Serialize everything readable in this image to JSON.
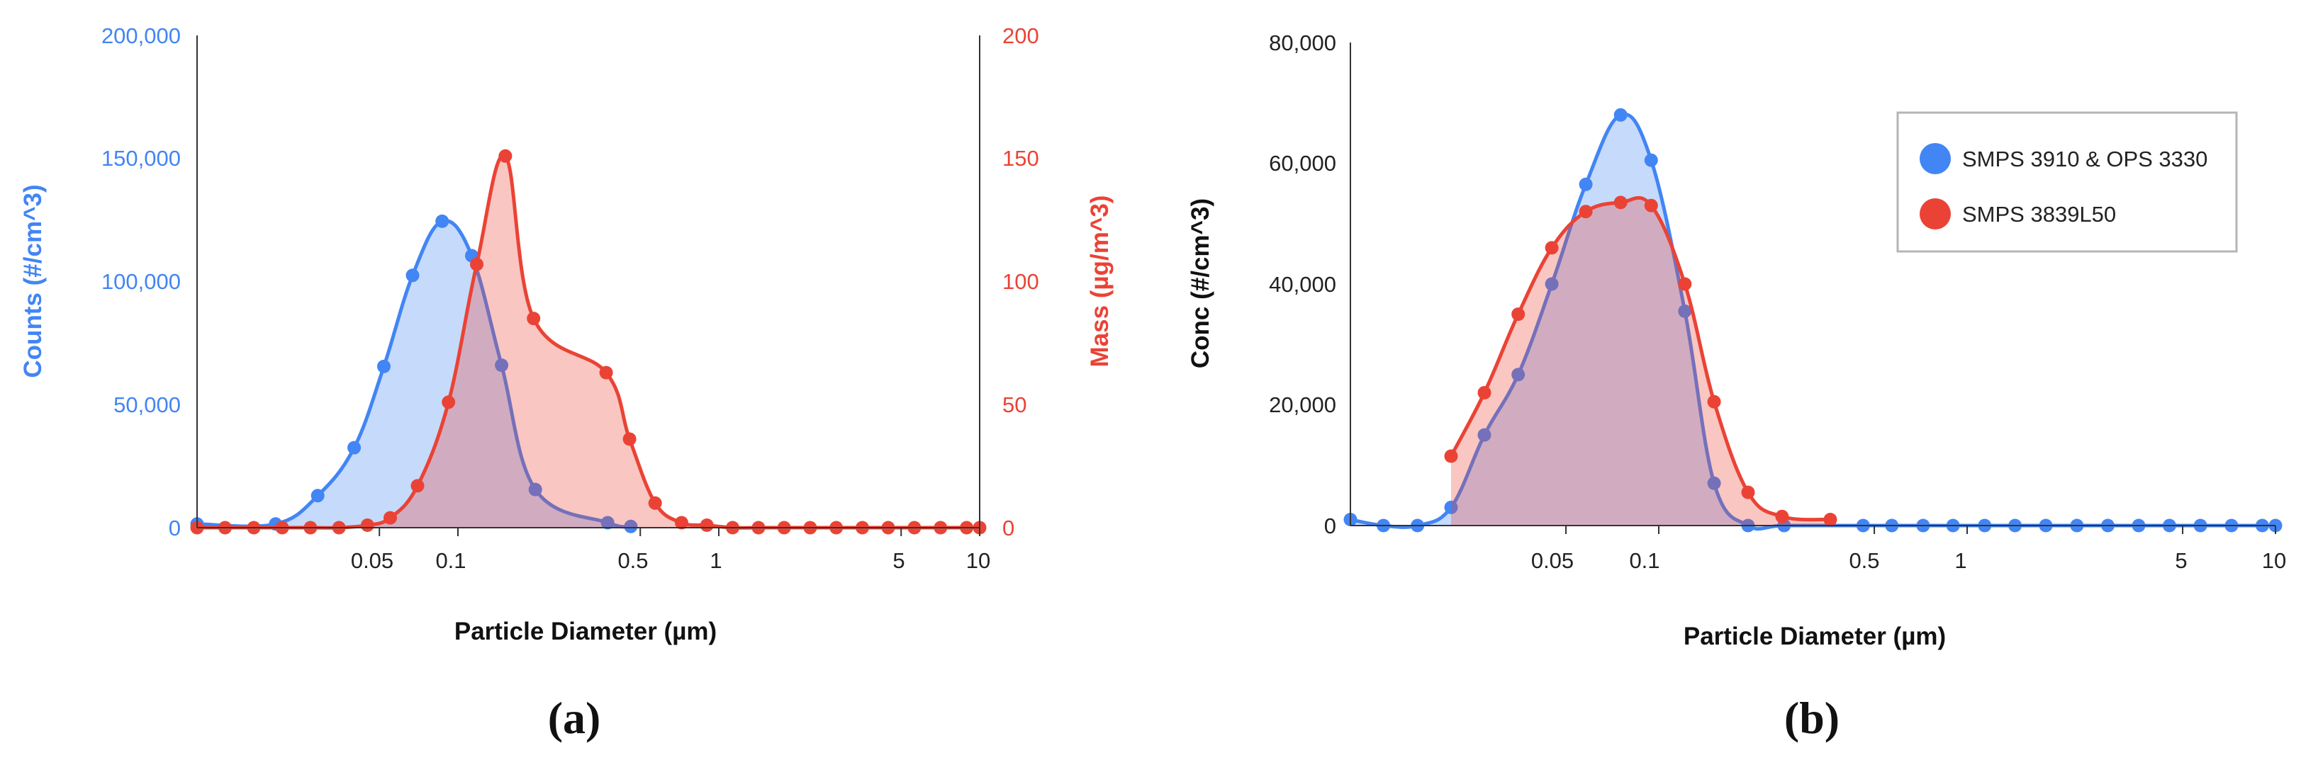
{
  "colors": {
    "blue": "#4285f4",
    "red": "#ea4335",
    "blue_fill": "rgba(66,133,244,0.30)",
    "red_fill": "rgba(234,67,53,0.30)",
    "axis": "#333333"
  },
  "chart_data": [
    {
      "panel_label": "(a)",
      "type": "area",
      "xlabel": "Particle Diameter (µm)",
      "xscale": "log",
      "xlim": [
        0.01,
        10
      ],
      "xticks": [
        0.05,
        0.1,
        0.5,
        1,
        5,
        10
      ],
      "xtick_labels": [
        "0.05",
        "0.1",
        "0.5",
        "1",
        "5",
        "10"
      ],
      "ylabel_left": "Counts (#/cm^3)",
      "ylim_left": [
        0,
        200000
      ],
      "yticks_left": [
        "0",
        "50,000",
        "100,000",
        "150,000",
        "200,000"
      ],
      "ylabel_right": "Mass (µg/m^3)",
      "ylim_right": [
        0,
        200
      ],
      "yticks_right": [
        "0",
        "50",
        "100",
        "150",
        "200"
      ],
      "grid": false,
      "legend": "none",
      "series": [
        {
          "axis": "left",
          "color": "blue",
          "x": [
            0.01,
            0.02,
            0.029,
            0.04,
            0.052,
            0.067,
            0.087,
            0.113,
            0.147,
            0.198,
            0.375,
            0.46
          ],
          "y": [
            1500,
            1500,
            13000,
            32500,
            65500,
            102500,
            124500,
            110500,
            66000,
            15500,
            2000,
            500
          ]
        },
        {
          "axis": "right",
          "color": "red",
          "x": [
            0.01,
            0.0128,
            0.0165,
            0.0212,
            0.0272,
            0.035,
            0.045,
            0.055,
            0.07,
            0.092,
            0.118,
            0.152,
            0.195,
            0.37,
            0.455,
            0.57,
            0.72,
            0.9,
            1.13,
            1.42,
            1.78,
            2.24,
            2.82,
            3.55,
            4.46,
            5.62,
            7.08,
            8.91,
            10.0
          ],
          "y": [
            0,
            0,
            0,
            0,
            0,
            0,
            1,
            4,
            17,
            51,
            107,
            151,
            85,
            63,
            36,
            10,
            2,
            1,
            0,
            0,
            0,
            0,
            0,
            0,
            0,
            0,
            0,
            0,
            0
          ]
        }
      ]
    },
    {
      "panel_label": "(b)",
      "type": "area",
      "xlabel": "Particle Diameter (µm)",
      "xscale": "log",
      "xlim": [
        0.01,
        10
      ],
      "xticks": [
        0.05,
        0.1,
        0.5,
        1,
        5,
        10
      ],
      "xtick_labels": [
        "0.05",
        "0.1",
        "0.5",
        "1",
        "5",
        "10"
      ],
      "ylabel": "Conc (#/cm^3)",
      "ylim": [
        0,
        80000
      ],
      "yticks": [
        "0",
        "20,000",
        "40,000",
        "60,000",
        "80,000"
      ],
      "grid": false,
      "legend": "top-right",
      "series": [
        {
          "name": "SMPS 3910 & OPS 3330",
          "color": "blue",
          "x": [
            0.01,
            0.0128,
            0.0165,
            0.0212,
            0.0272,
            0.035,
            0.045,
            0.058,
            0.0752,
            0.0945,
            0.1215,
            0.1512,
            0.1948,
            0.255,
            0.46,
            0.57,
            0.72,
            0.9,
            1.14,
            1.43,
            1.8,
            2.27,
            2.86,
            3.6,
            4.53,
            5.71,
            7.2,
            9.06,
            10.0
          ],
          "y": [
            1000,
            0,
            0,
            3000,
            15000,
            25000,
            40000,
            56500,
            68000,
            60500,
            35500,
            7000,
            0,
            0,
            0,
            0,
            0,
            0,
            0,
            0,
            0,
            0,
            0,
            0,
            0,
            0,
            0,
            0,
            0
          ]
        },
        {
          "name": "SMPS 3839L50",
          "color": "red",
          "x": [
            0.0212,
            0.0272,
            0.035,
            0.045,
            0.058,
            0.0752,
            0.0945,
            0.1215,
            0.1512,
            0.1948,
            0.251,
            0.36
          ],
          "y": [
            11500,
            22000,
            35000,
            46000,
            52000,
            53500,
            53000,
            40000,
            20500,
            5500,
            1500,
            1000
          ]
        }
      ]
    }
  ]
}
